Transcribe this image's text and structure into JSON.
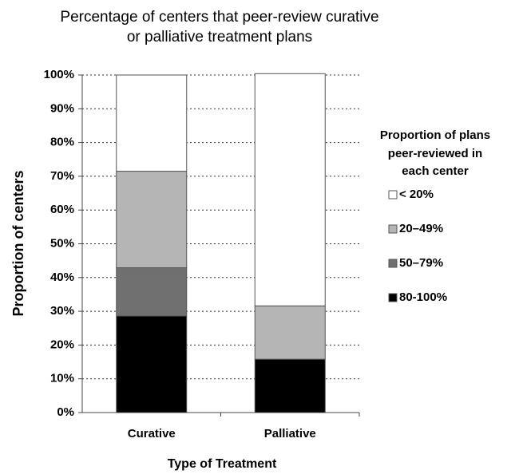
{
  "chart_data": {
    "type": "stacked_bar",
    "title": [
      "Percentage of centers that peer-review curative",
      "or palliative treatment plans"
    ],
    "x_label": "Type of Treatment",
    "y_label": "Proportion of centers",
    "legend_title": [
      "Proportion of plans",
      "peer-reviewed in",
      "each center"
    ],
    "legend_position": "right",
    "categories": [
      "Curative",
      "Palliative"
    ],
    "series": [
      {
        "name": "80-100%",
        "color": "#000000",
        "values": [
          28.6,
          15.8
        ]
      },
      {
        "name": "50–79%",
        "color": "#707070",
        "values": [
          14.3,
          0
        ]
      },
      {
        "name": "20–49%",
        "color": "#b5b5b5",
        "values": [
          28.6,
          15.8
        ]
      },
      {
        "name": "< 20%",
        "color": "#ffffff",
        "values": [
          28.5,
          68.8
        ]
      }
    ],
    "ylim": [
      0,
      100
    ],
    "yticks": [
      {
        "value": 0,
        "label": "0%"
      },
      {
        "value": 10,
        "label": "10%"
      },
      {
        "value": 20,
        "label": "20%"
      },
      {
        "value": 30,
        "label": "30%"
      },
      {
        "value": 40,
        "label": "40%"
      },
      {
        "value": 50,
        "label": "50%"
      },
      {
        "value": 60,
        "label": "60%"
      },
      {
        "value": 70,
        "label": "70%"
      },
      {
        "value": 80,
        "label": "80%"
      },
      {
        "value": 90,
        "label": "90%"
      },
      {
        "value": 100,
        "label": "100%"
      }
    ],
    "grid": true
  }
}
